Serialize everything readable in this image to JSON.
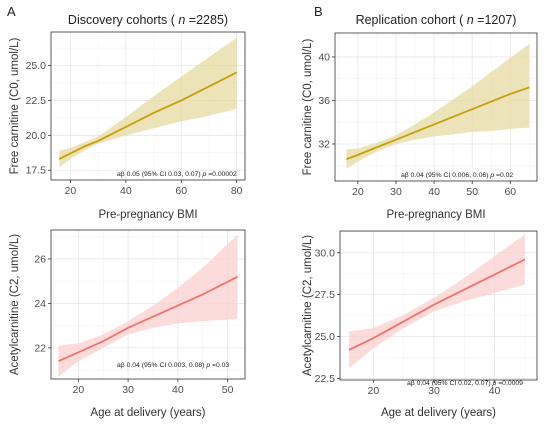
{
  "chart_data": [
    {
      "panel_label": "A",
      "type": "line",
      "title_pre": "Discovery cohorts (",
      "title_n": "n",
      "title_post": " =2285)",
      "xlabel": "Pre-pregnancy BMI",
      "ylabel": "Free carnitine (C0, umol/L)",
      "xlim": [
        13,
        83
      ],
      "ylim": [
        16.8,
        27.4
      ],
      "xticks": [
        20,
        40,
        60,
        80
      ],
      "yticks": [
        17.5,
        20.0,
        22.5,
        25.0
      ],
      "yticklabels": [
        "17.5",
        "20.0",
        "22.5",
        "25.0"
      ],
      "line_color": "#c5a00b",
      "band_color": "#e6daa0",
      "series": [
        {
          "x": [
            16,
            20,
            25,
            30,
            40,
            50,
            60,
            70,
            80
          ],
          "y": [
            18.3,
            18.7,
            19.2,
            19.6,
            20.6,
            21.6,
            22.5,
            23.5,
            24.5
          ],
          "lower": [
            17.7,
            18.3,
            18.9,
            19.4,
            20.0,
            20.5,
            21.0,
            21.4,
            21.9
          ],
          "upper": [
            18.9,
            19.1,
            19.5,
            19.9,
            21.3,
            22.8,
            24.2,
            25.6,
            27.0
          ]
        }
      ],
      "annotation_pre": "aβ 0.05 (95% CI 0.03, 0.07) ",
      "annotation_p": "p",
      "annotation_post": " =0.00002"
    },
    {
      "panel_label": "B",
      "type": "line",
      "title_pre": "Replication cohort (",
      "title_n": "n",
      "title_post": " =1207)",
      "xlabel": "Pre-pregnancy BMI",
      "ylabel": "Free carnitine (C0, umol/L)",
      "xlim": [
        14,
        67
      ],
      "ylim": [
        28.6,
        42.2
      ],
      "xticks": [
        20,
        30,
        40,
        50,
        60
      ],
      "yticks": [
        32,
        36,
        40
      ],
      "yticklabels": [
        "32",
        "36",
        "40"
      ],
      "line_color": "#c5a00b",
      "band_color": "#e6daa0",
      "series": [
        {
          "x": [
            17,
            20,
            25,
            30,
            35,
            40,
            45,
            50,
            55,
            60,
            65
          ],
          "y": [
            30.6,
            31.0,
            31.7,
            32.4,
            33.1,
            33.8,
            34.5,
            35.2,
            35.9,
            36.6,
            37.2
          ],
          "lower": [
            29.7,
            30.4,
            31.3,
            32.0,
            32.4,
            32.7,
            32.9,
            33.1,
            33.2,
            33.4,
            33.5
          ],
          "upper": [
            31.5,
            31.6,
            32.1,
            32.8,
            33.8,
            34.9,
            36.1,
            37.3,
            38.6,
            39.9,
            41.2
          ]
        }
      ],
      "annotation_pre": "aβ 0.04 (95% CI 0.006, 0.06) ",
      "annotation_p": "p",
      "annotation_post": " =0.02"
    },
    {
      "panel_label": "",
      "type": "line",
      "title_pre": "",
      "title_n": "",
      "title_post": "",
      "xlabel": "Age at delivery (years)",
      "ylabel": "Acetylcarnitine (C2, umol/L)",
      "xlim": [
        14.5,
        53.5
      ],
      "ylim": [
        20.6,
        27.3
      ],
      "xticks": [
        20,
        30,
        40,
        50
      ],
      "yticks": [
        22,
        24,
        26
      ],
      "yticklabels": [
        "22",
        "24",
        "26"
      ],
      "line_color": "#f2726b",
      "band_color": "#fbd0cd",
      "series": [
        {
          "x": [
            16,
            20,
            25,
            30,
            35,
            40,
            45,
            52
          ],
          "y": [
            21.4,
            21.8,
            22.3,
            22.9,
            23.4,
            23.9,
            24.4,
            25.2
          ],
          "lower": [
            20.7,
            21.4,
            22.0,
            22.6,
            22.9,
            23.1,
            23.2,
            23.3
          ],
          "upper": [
            22.1,
            22.2,
            22.6,
            23.2,
            23.9,
            24.7,
            25.6,
            27.1
          ]
        }
      ],
      "annotation_pre": "aβ 0.04 (95% CI 0.003, 0.08) ",
      "annotation_p": "p",
      "annotation_post": " =0.03"
    },
    {
      "panel_label": "",
      "type": "line",
      "title_pre": "",
      "title_n": "",
      "title_post": "",
      "xlabel": "Age at delivery (years)",
      "ylabel": "Acetylcarnitine (C2, umol/L)",
      "xlim": [
        14.5,
        47
      ],
      "ylim": [
        22.4,
        31.3
      ],
      "xticks": [
        20,
        30,
        40
      ],
      "yticks": [
        22.5,
        25.0,
        27.5,
        30.0
      ],
      "yticklabels": [
        "22.5",
        "25.0",
        "27.5",
        "30.0"
      ],
      "line_color": "#f2726b",
      "band_color": "#fbd0cd",
      "series": [
        {
          "x": [
            16,
            20,
            25,
            30,
            35,
            40,
            45
          ],
          "y": [
            24.2,
            24.9,
            25.9,
            26.9,
            27.8,
            28.7,
            29.6
          ],
          "lower": [
            23.1,
            24.3,
            25.5,
            26.5,
            27.1,
            27.6,
            28.1
          ],
          "upper": [
            25.3,
            25.5,
            26.3,
            27.3,
            28.5,
            29.8,
            31.1
          ]
        }
      ],
      "annotation_pre": "aβ 0.04 (95% CI 0.02, 0.07) ",
      "annotation_p": "p",
      "annotation_post": " =0.0009"
    }
  ]
}
